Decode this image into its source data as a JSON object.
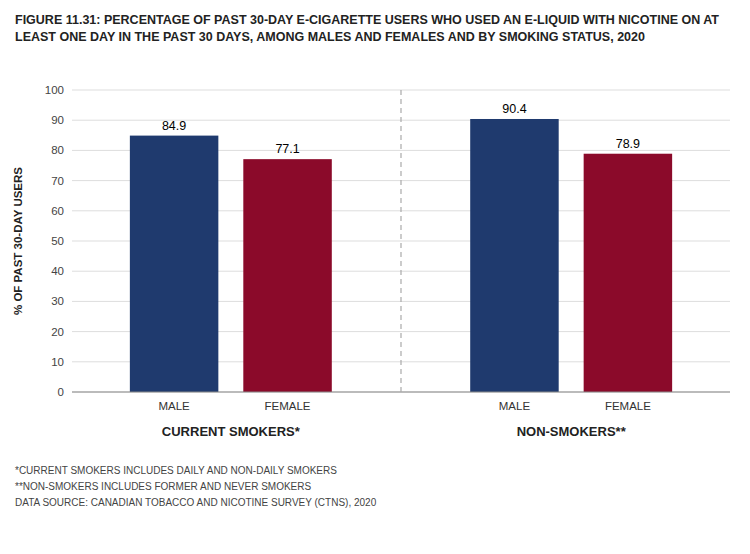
{
  "chart_data": {
    "type": "bar",
    "title": "FIGURE 11.31: PERCENTAGE OF PAST 30-DAY E-CIGARETTE USERS WHO USED AN E-LIQUID WITH NICOTINE ON AT LEAST ONE DAY IN THE PAST 30 DAYS, AMONG MALES AND FEMALES AND BY SMOKING STATUS, 2020",
    "y_label": "% OF PAST 30-DAY USERS",
    "categories": [
      "MALE",
      "FEMALE",
      "MALE",
      "FEMALE"
    ],
    "groups": [
      "CURRENT SMOKERS*",
      "CURRENT SMOKERS*",
      "NON-SMOKERS**",
      "NON-SMOKERS**"
    ],
    "values": [
      84.9,
      77.1,
      90.4,
      78.9
    ],
    "colors": [
      "#1F3A6E",
      "#8B0A2A",
      "#1F3A6E",
      "#8B0A2A"
    ],
    "ylim": [
      0,
      100
    ],
    "yticks": [
      0,
      10,
      20,
      30,
      40,
      50,
      60,
      70,
      80,
      90,
      100
    ],
    "grid": true,
    "data_labels": true,
    "annotations": [
      "*CURRENT SMOKERS INCLUDES DAILY AND NON-DAILY SMOKERS",
      "**NON-SMOKERS INCLUDES FORMER AND NEVER SMOKERS",
      "DATA SOURCE: CANADIAN TOBACCO AND NICOTINE SURVEY (CTNS), 2020"
    ]
  }
}
